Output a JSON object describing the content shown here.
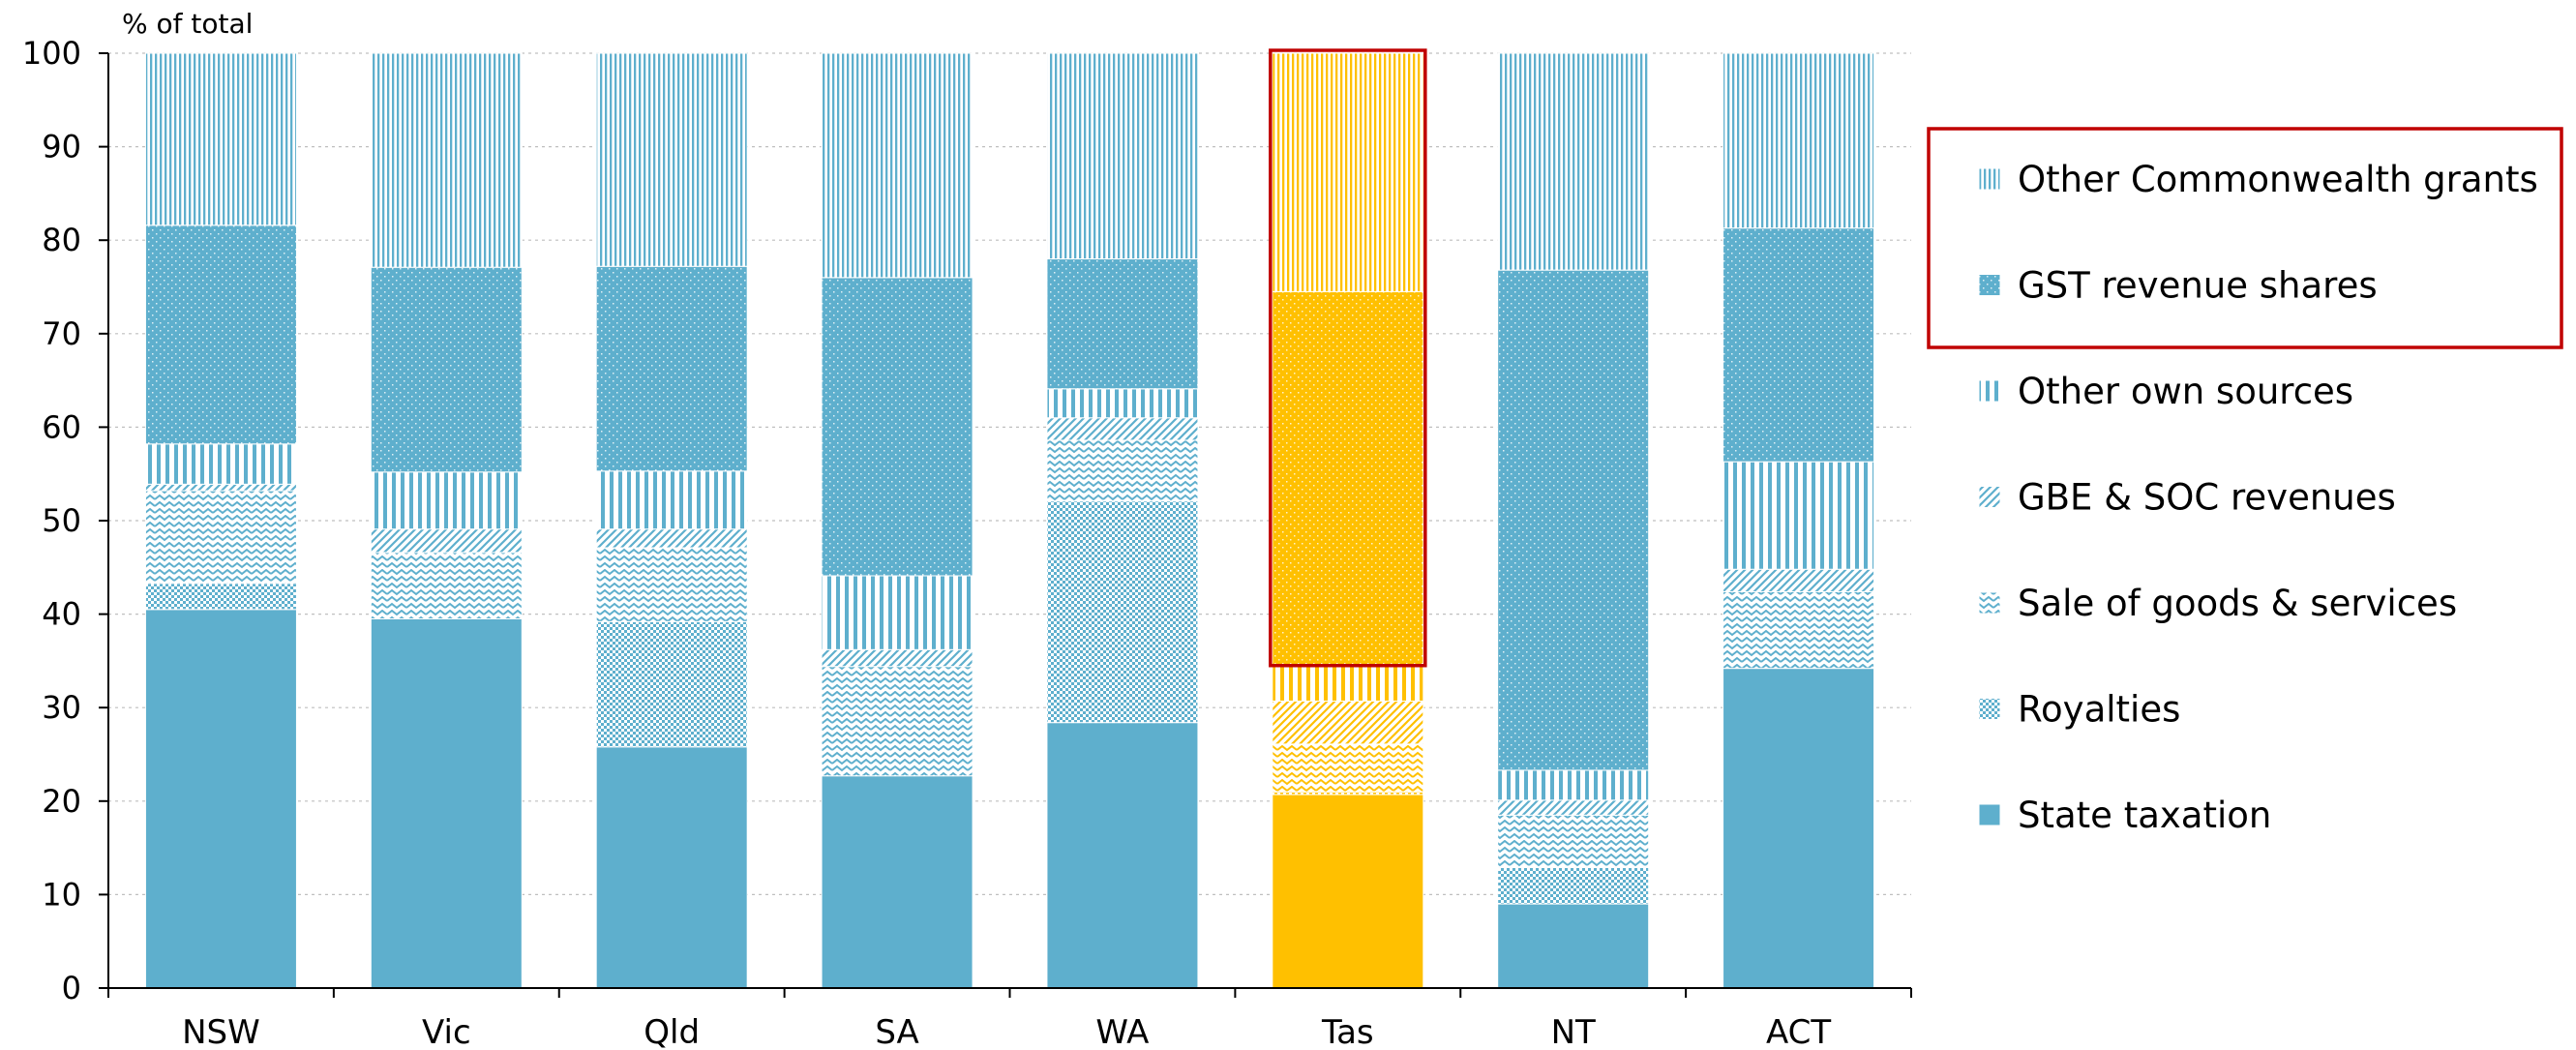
{
  "colors": {
    "blue": "#5eafcd",
    "orange": "#ffc000",
    "highlight": "#c00000",
    "axis": "#000000",
    "grid": "#bfbfbf"
  },
  "chart_data": {
    "type": "bar",
    "stacked": true,
    "ylabel": "% of total",
    "ylim": [
      0,
      100
    ],
    "yticks": [
      0,
      10,
      20,
      30,
      40,
      50,
      60,
      70,
      80,
      90,
      100
    ],
    "grid": "horizontal dotted",
    "legend_position": "right",
    "categories": [
      "NSW",
      "Vic",
      "Qld",
      "SA",
      "WA",
      "Tas",
      "NT",
      "ACT"
    ],
    "highlighted_category": "Tas",
    "highlighted_series": [
      "GST revenue shares",
      "Other Commonwealth grants"
    ],
    "series": [
      {
        "name": "State taxation",
        "pattern": "solid",
        "values": [
          40.5,
          39.5,
          25.8,
          22.7,
          28.4,
          20.7,
          9.0,
          34.2
        ]
      },
      {
        "name": "Royalties",
        "pattern": "dots",
        "values": [
          2.8,
          0.0,
          13.4,
          0.0,
          23.7,
          0.3,
          3.9,
          0.0
        ]
      },
      {
        "name": "Sale of goods & services",
        "pattern": "wave",
        "values": [
          9.9,
          7.1,
          7.9,
          11.7,
          6.5,
          5.1,
          5.6,
          8.2
        ]
      },
      {
        "name": "GBE & SOC revenues",
        "pattern": "diagonal",
        "values": [
          0.7,
          2.5,
          2.0,
          1.8,
          2.4,
          4.6,
          1.6,
          2.4
        ]
      },
      {
        "name": "Other own sources",
        "pattern": "vlines-wide",
        "values": [
          4.3,
          6.1,
          6.2,
          7.9,
          3.1,
          3.8,
          3.2,
          11.5
        ]
      },
      {
        "name": "GST revenue shares",
        "pattern": "dot-fill",
        "values": [
          23.4,
          21.9,
          21.9,
          31.9,
          13.9,
          40.0,
          53.5,
          25.0
        ]
      },
      {
        "name": "Other Commonwealth grants",
        "pattern": "vlines-fine",
        "values": [
          18.4,
          22.9,
          22.8,
          24.0,
          22.0,
          25.5,
          23.2,
          18.7
        ]
      }
    ],
    "legend_order": [
      "Other Commonwealth grants",
      "GST revenue shares",
      "Other own sources",
      "GBE & SOC revenues",
      "Sale of goods & services",
      "Royalties",
      "State taxation"
    ]
  }
}
